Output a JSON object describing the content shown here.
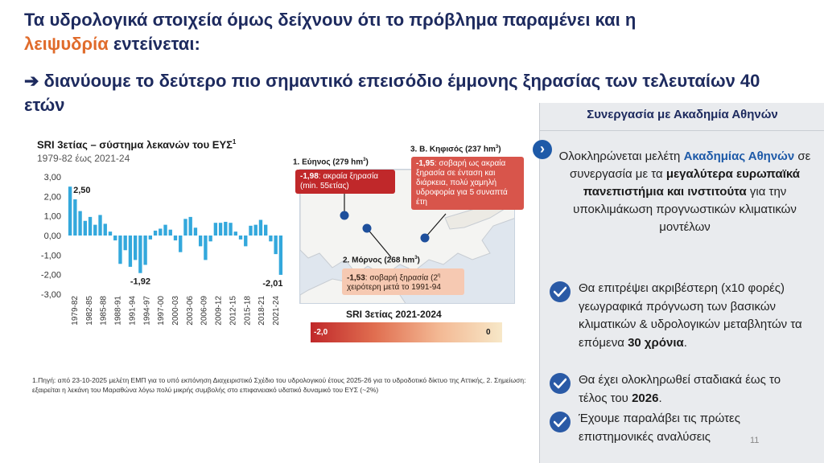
{
  "title": {
    "line1": "Τα υδρολογικά στοιχεία όμως δείχνουν ότι το πρόβλημα παραμένει και η",
    "accent": "λειψυδρία",
    "line2_rest": " εντείνεται:"
  },
  "subtitle": "➔ διανύουμε το δεύτερο πιο σημαντικό επεισόδιο έμμονης ξηρασίας των τελευταίων 40 ετών",
  "chart": {
    "title": "SRI 3ετίας – σύστημα λεκανών του ΕΥΣ",
    "title_sup": "1",
    "subtitle": "1979-82 έως 2021-24"
  },
  "chart_data": {
    "type": "bar",
    "title": "SRI 3ετίας – σύστημα λεκανών του ΕΥΣ",
    "subtitle": "1979-82 έως 2021-24",
    "ylim": [
      -3,
      3
    ],
    "yticks": [
      "3,00",
      "2,00",
      "1,00",
      "0,00",
      "-1,00",
      "-2,00",
      "-3,00"
    ],
    "x_tick_labels": [
      "1979-82",
      "1982-85",
      "1985-88",
      "1988-91",
      "1991-94",
      "1994-97",
      "1997-00",
      "2000-03",
      "2003-06",
      "2006-09",
      "2009-12",
      "2012-15",
      "2015-18",
      "2018-21",
      "2021-24"
    ],
    "values": [
      2.5,
      1.85,
      1.25,
      0.75,
      0.95,
      0.55,
      1.05,
      0.6,
      0.2,
      -0.25,
      -1.45,
      -0.75,
      -1.6,
      -1.25,
      -1.92,
      -1.5,
      -0.2,
      0.25,
      0.35,
      0.55,
      0.3,
      -0.25,
      -0.85,
      0.85,
      0.95,
      0.4,
      -0.55,
      -1.25,
      -0.3,
      0.65,
      0.65,
      0.7,
      0.65,
      0.2,
      -0.2,
      -0.55,
      0.5,
      0.55,
      0.8,
      0.55,
      -0.3,
      -0.95,
      -2.01
    ],
    "annotations": [
      {
        "text": "2,50",
        "value": 2.5
      },
      {
        "text": "-1,92",
        "value": -1.92
      },
      {
        "text": "-2,01",
        "value": -2.01
      }
    ],
    "bar_color": "#33a8dc",
    "grid": false
  },
  "map": {
    "evinos_label": "1. Εύηνος (279 hm",
    "evinos_callout_value": "-1,98",
    "evinos_callout_text": ": ακραία ξηρασία (min. 55ετίας)",
    "kifisos_label": "3. Β. Κηφισός (237 hm",
    "kifisos_callout_value": "-1,95",
    "kifisos_callout_text": ": σοβαρή ως ακραία ξηρασία σε ένταση και διάρκεια, πολύ χαμηλή υδροφορία για 5 συναπτά έτη",
    "mornos_label": "2. Μόρνος (268 hm",
    "mornos_callout_value": "-1,53",
    "mornos_callout_text": ": σοβαρή ξηρασία (2",
    "mornos_callout_sup": "η",
    "mornos_callout_text2": " χειρότερη μετά το 1991-94",
    "unit_sup": "3",
    "label_close": ")"
  },
  "legend": {
    "title": "SRI 3ετίας 2021-2024",
    "min": "-2,0",
    "max": "0"
  },
  "footnote": "1.Πηγή: από 23-10-2025 μελέτη ΕΜΠ για το υπό εκπόνηση Διαχειριστικό Σχέδιο του υδρολογικού έτους 2025-26 για το υδροδοτικό δίκτυο της Αττικής, 2. Σημείωση: εξαιρείται η λεκάνη του Μαραθώνα λόγω πολύ μικρής συμβολής στο επιφανειακό υδατικό δυναμικό του ΕΥΣ (~2%)",
  "panel": {
    "heading": "Συνεργασία με Ακαδημία Αθηνών",
    "chevron": "›",
    "intro_1": "Ολοκληρώνεται μελέτη ",
    "intro_blue": "Ακαδημίας Αθηνών",
    "intro_2": " σε συνεργασία με τα ",
    "intro_bold": "μεγαλύτερα ευρωπαϊκά πανεπιστήμια και ινστιτούτα",
    "intro_3": "  για την υποκλιμάκωση προγνωστικών κλιματικών μοντέλων",
    "bullet1_a": "Θα επιτρέψει ακριβέστερη (x10 φορές) γεωγραφικά πρόγνωση των βασικών κλιματικών & υδρολογικών μεταβλητών τα επόμενα ",
    "bullet1_b": "30 χρόνια",
    "bullet1_c": ".",
    "bullet2_a": "Θα έχει ολοκληρωθεί σταδιακά έως το τέλος του ",
    "bullet2_b": "2026",
    "bullet2_c": ".",
    "bullet3": "Έχουμε παραλάβει τις πρώτες επιστημονικές αναλύσεις"
  },
  "page_number": "11",
  "colors": {
    "navy": "#1d2a5e",
    "accent_orange": "#e06c2c",
    "bar_blue": "#33a8dc",
    "callout_red": "#c0282a",
    "panel_bg": "#e9ebee",
    "check_blue": "#2a5aa6"
  }
}
